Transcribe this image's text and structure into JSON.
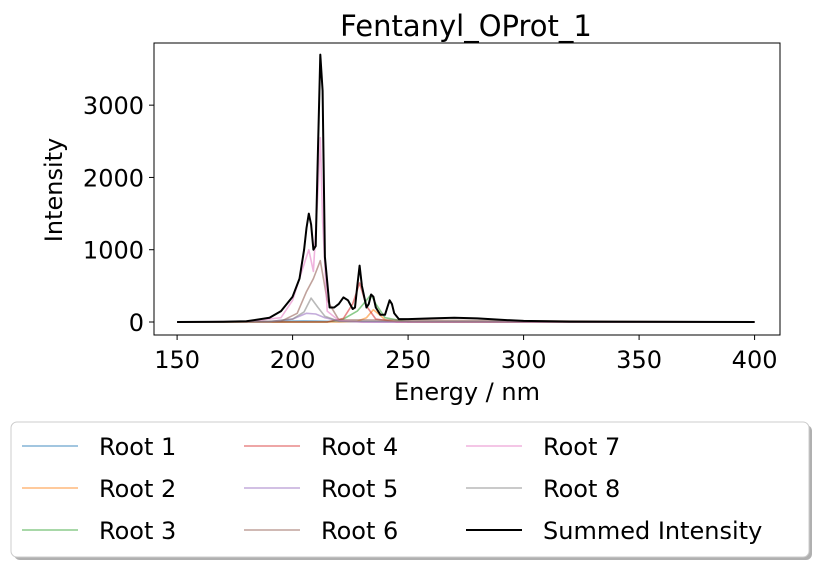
{
  "chart_data": {
    "type": "line",
    "title": "Fentanyl_OProt_1",
    "xlabel": "Energy / nm",
    "ylabel": "Intensity",
    "xlim": [
      140,
      411
    ],
    "ylim": [
      -180,
      3860
    ],
    "xticks": [
      150,
      200,
      250,
      300,
      350,
      400
    ],
    "yticks": [
      0,
      1000,
      2000,
      3000
    ],
    "grid": false,
    "legend_position": "bottom-center, below plot, 3 columns",
    "series": [
      {
        "name": "Root 1",
        "color": "#1f77b4",
        "x": [
          150,
          180,
          195,
          200,
          205,
          210,
          220,
          240,
          300,
          400
        ],
        "y": [
          0,
          2,
          8,
          12,
          15,
          12,
          6,
          2,
          0,
          0
        ]
      },
      {
        "name": "Root 2",
        "color": "#ff7f0e",
        "x": [
          150,
          220,
          228,
          232,
          235,
          238,
          240,
          245,
          260,
          400
        ],
        "y": [
          0,
          0,
          10,
          60,
          170,
          90,
          30,
          5,
          0,
          0
        ]
      },
      {
        "name": "Root 3",
        "color": "#2ca02c",
        "x": [
          150,
          215,
          222,
          228,
          232,
          234,
          236,
          240,
          250,
          400
        ],
        "y": [
          0,
          0,
          40,
          150,
          300,
          380,
          250,
          60,
          0,
          0
        ]
      },
      {
        "name": "Root 4",
        "color": "#d62728",
        "x": [
          150,
          215,
          222,
          226,
          229,
          232,
          236,
          245,
          400
        ],
        "y": [
          0,
          0,
          50,
          250,
          540,
          220,
          40,
          0,
          0
        ]
      },
      {
        "name": "Root 5",
        "color": "#9467bd",
        "x": [
          150,
          190,
          200,
          206,
          210,
          214,
          220,
          230,
          400
        ],
        "y": [
          0,
          5,
          40,
          120,
          110,
          60,
          15,
          0,
          0
        ]
      },
      {
        "name": "Root 6",
        "color": "#8c564b",
        "x": [
          150,
          195,
          202,
          206,
          209,
          212,
          215,
          220,
          400
        ],
        "y": [
          0,
          10,
          120,
          420,
          600,
          850,
          300,
          30,
          0
        ]
      },
      {
        "name": "Root 7",
        "color": "#e377c2",
        "x": [
          150,
          180,
          195,
          200,
          204,
          207,
          209,
          211,
          212,
          213,
          215,
          220,
          230,
          400
        ],
        "y": [
          0,
          5,
          60,
          300,
          700,
          1000,
          700,
          1800,
          2550,
          1400,
          150,
          20,
          0,
          0
        ]
      },
      {
        "name": "Root 8",
        "color": "#7f7f7f",
        "x": [
          150,
          190,
          200,
          205,
          208,
          211,
          214,
          220,
          400
        ],
        "y": [
          0,
          5,
          40,
          140,
          330,
          200,
          80,
          10,
          0
        ]
      },
      {
        "name": "Summed Intensity",
        "color": "#000000",
        "x": [
          150,
          170,
          180,
          190,
          195,
          200,
          203,
          205,
          206,
          207,
          208,
          209,
          210,
          211,
          212,
          213,
          214,
          216,
          218,
          220,
          222,
          224,
          226,
          227,
          228,
          229,
          230,
          232,
          233,
          234,
          235,
          236,
          238,
          240,
          241,
          242,
          243,
          244,
          246,
          250,
          260,
          270,
          280,
          290,
          300,
          320,
          350,
          400
        ],
        "y": [
          0,
          2,
          10,
          60,
          150,
          350,
          600,
          1000,
          1300,
          1500,
          1350,
          1000,
          1050,
          2400,
          3700,
          3200,
          900,
          200,
          200,
          250,
          340,
          300,
          180,
          200,
          500,
          780,
          500,
          200,
          250,
          380,
          350,
          200,
          100,
          100,
          200,
          300,
          250,
          120,
          40,
          40,
          50,
          60,
          50,
          30,
          15,
          5,
          2,
          0
        ]
      }
    ]
  }
}
